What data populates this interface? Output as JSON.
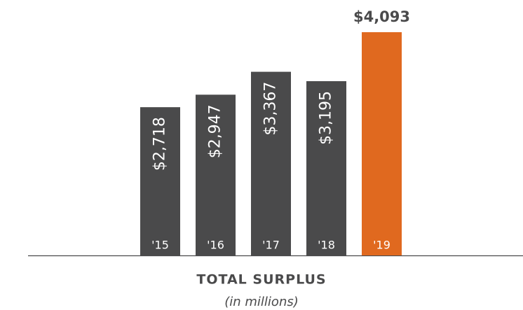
{
  "chart_data": {
    "type": "bar",
    "title": "TOTAL SURPLUS",
    "subtitle": "(in millions)",
    "categories": [
      "'15",
      "'16",
      "'17",
      "'18",
      "'19"
    ],
    "values": [
      2718,
      2947,
      3367,
      3195,
      4093
    ],
    "value_labels": [
      "$2,718",
      "$2,947",
      "$3,367",
      "$3,195",
      "$4,093"
    ],
    "colors": [
      "#4a4a4b",
      "#4a4a4b",
      "#4a4a4b",
      "#4a4a4b",
      "#e0691f"
    ]
  }
}
